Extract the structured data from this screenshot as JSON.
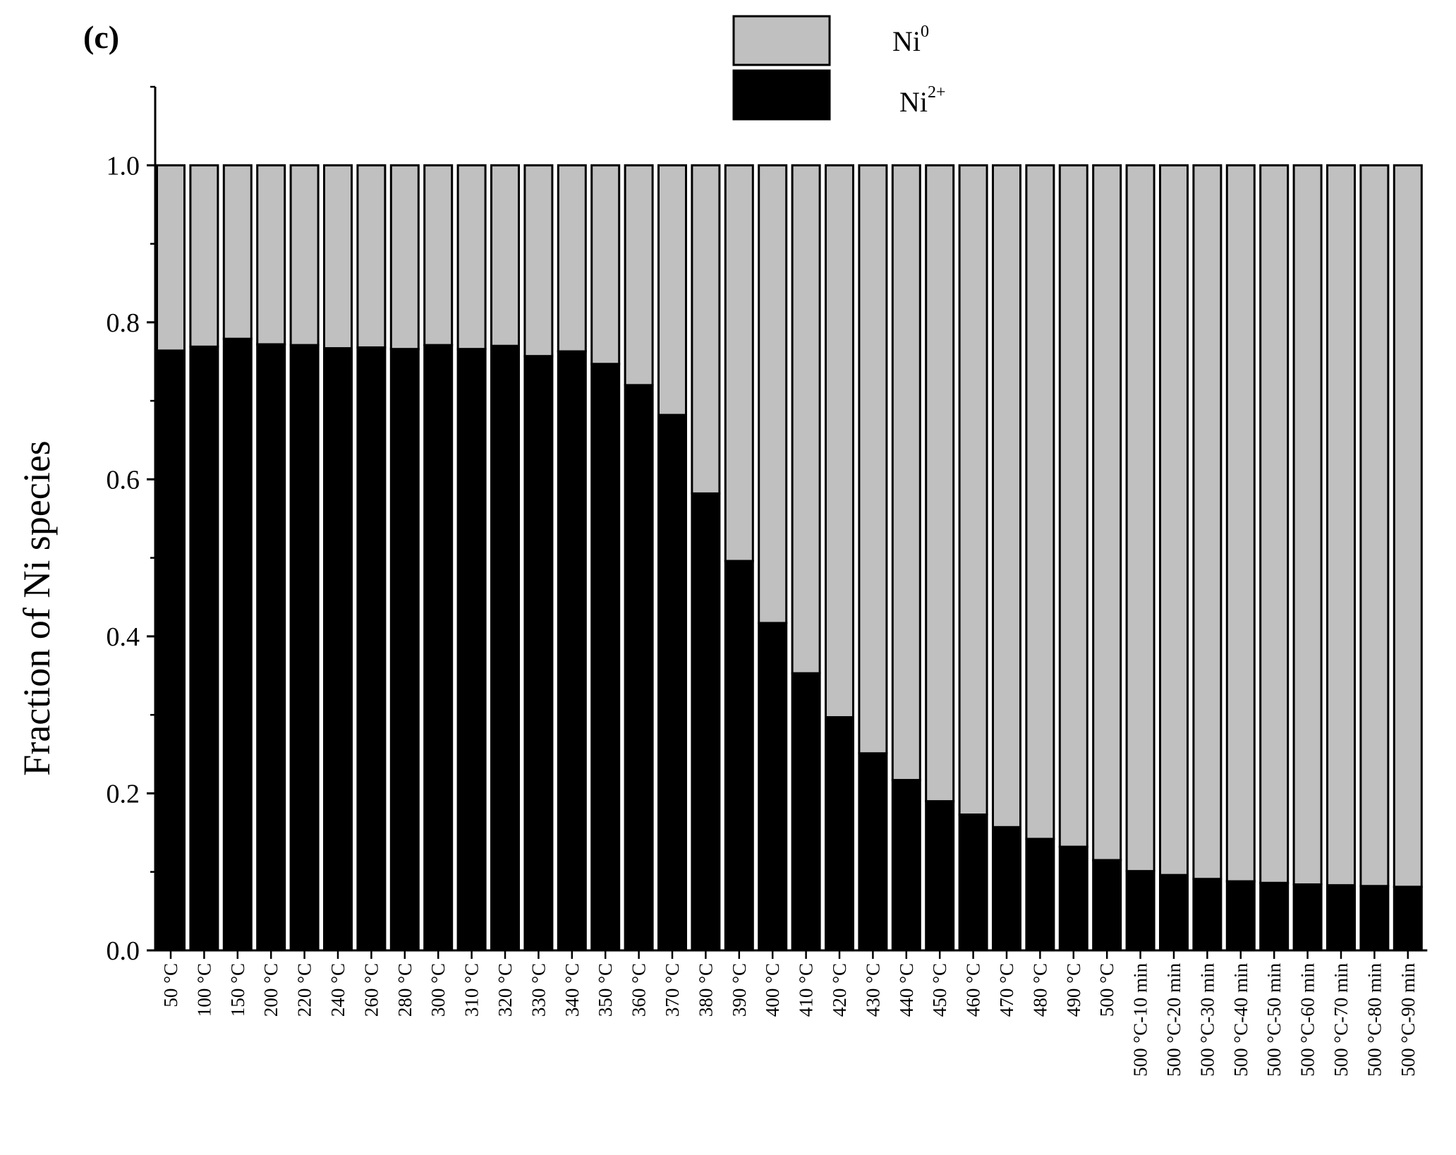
{
  "chart_data": {
    "type": "bar",
    "stacked": true,
    "panel_label": "(c)",
    "ylabel": "Fraction of Ni species",
    "xlabel": "",
    "ylim": [
      0,
      1.1
    ],
    "yticks": [
      "0.0",
      "0.2",
      "0.4",
      "0.6",
      "0.8",
      "1.0"
    ],
    "categories": [
      "50 °C",
      "100 °C",
      "150 °C",
      "200 °C",
      "220 °C",
      "240 °C",
      "260 °C",
      "280 °C",
      "300 °C",
      "310 °C",
      "320 °C",
      "330 °C",
      "340 °C",
      "350 °C",
      "360 °C",
      "370 °C",
      "380 °C",
      "390 °C",
      "400 °C",
      "410 °C",
      "420 °C",
      "430 °C",
      "440 °C",
      "450 °C",
      "460 °C",
      "470 °C",
      "480 °C",
      "490 °C",
      "500 °C",
      "500 °C-10 min",
      "500 °C-20 min",
      "500 °C-30 min",
      "500 °C-40 min",
      "500 °C-50 min",
      "500 °C-60 min",
      "500 °C-70 min",
      "500 °C-80 min",
      "500 °C-90 min"
    ],
    "series": [
      {
        "name": "Ni2+",
        "label_base": "Ni",
        "label_sup": "2+",
        "color": "#000000",
        "values": [
          0.764,
          0.769,
          0.779,
          0.772,
          0.771,
          0.767,
          0.768,
          0.766,
          0.771,
          0.766,
          0.77,
          0.757,
          0.763,
          0.747,
          0.72,
          0.682,
          0.582,
          0.496,
          0.417,
          0.353,
          0.297,
          0.251,
          0.217,
          0.19,
          0.173,
          0.157,
          0.142,
          0.132,
          0.115,
          0.101,
          0.096,
          0.091,
          0.088,
          0.086,
          0.084,
          0.083,
          0.082,
          0.081
        ]
      },
      {
        "name": "Ni0",
        "label_base": "Ni",
        "label_sup": "0",
        "color": "#c0c0c0",
        "values": [
          0.236,
          0.231,
          0.221,
          0.228,
          0.229,
          0.233,
          0.232,
          0.234,
          0.229,
          0.234,
          0.23,
          0.243,
          0.237,
          0.253,
          0.28,
          0.318,
          0.418,
          0.504,
          0.583,
          0.647,
          0.703,
          0.749,
          0.783,
          0.81,
          0.827,
          0.843,
          0.858,
          0.868,
          0.885,
          0.899,
          0.904,
          0.909,
          0.912,
          0.914,
          0.916,
          0.917,
          0.918,
          0.919
        ]
      }
    ],
    "legend_position": "top-center",
    "grid": false
  }
}
